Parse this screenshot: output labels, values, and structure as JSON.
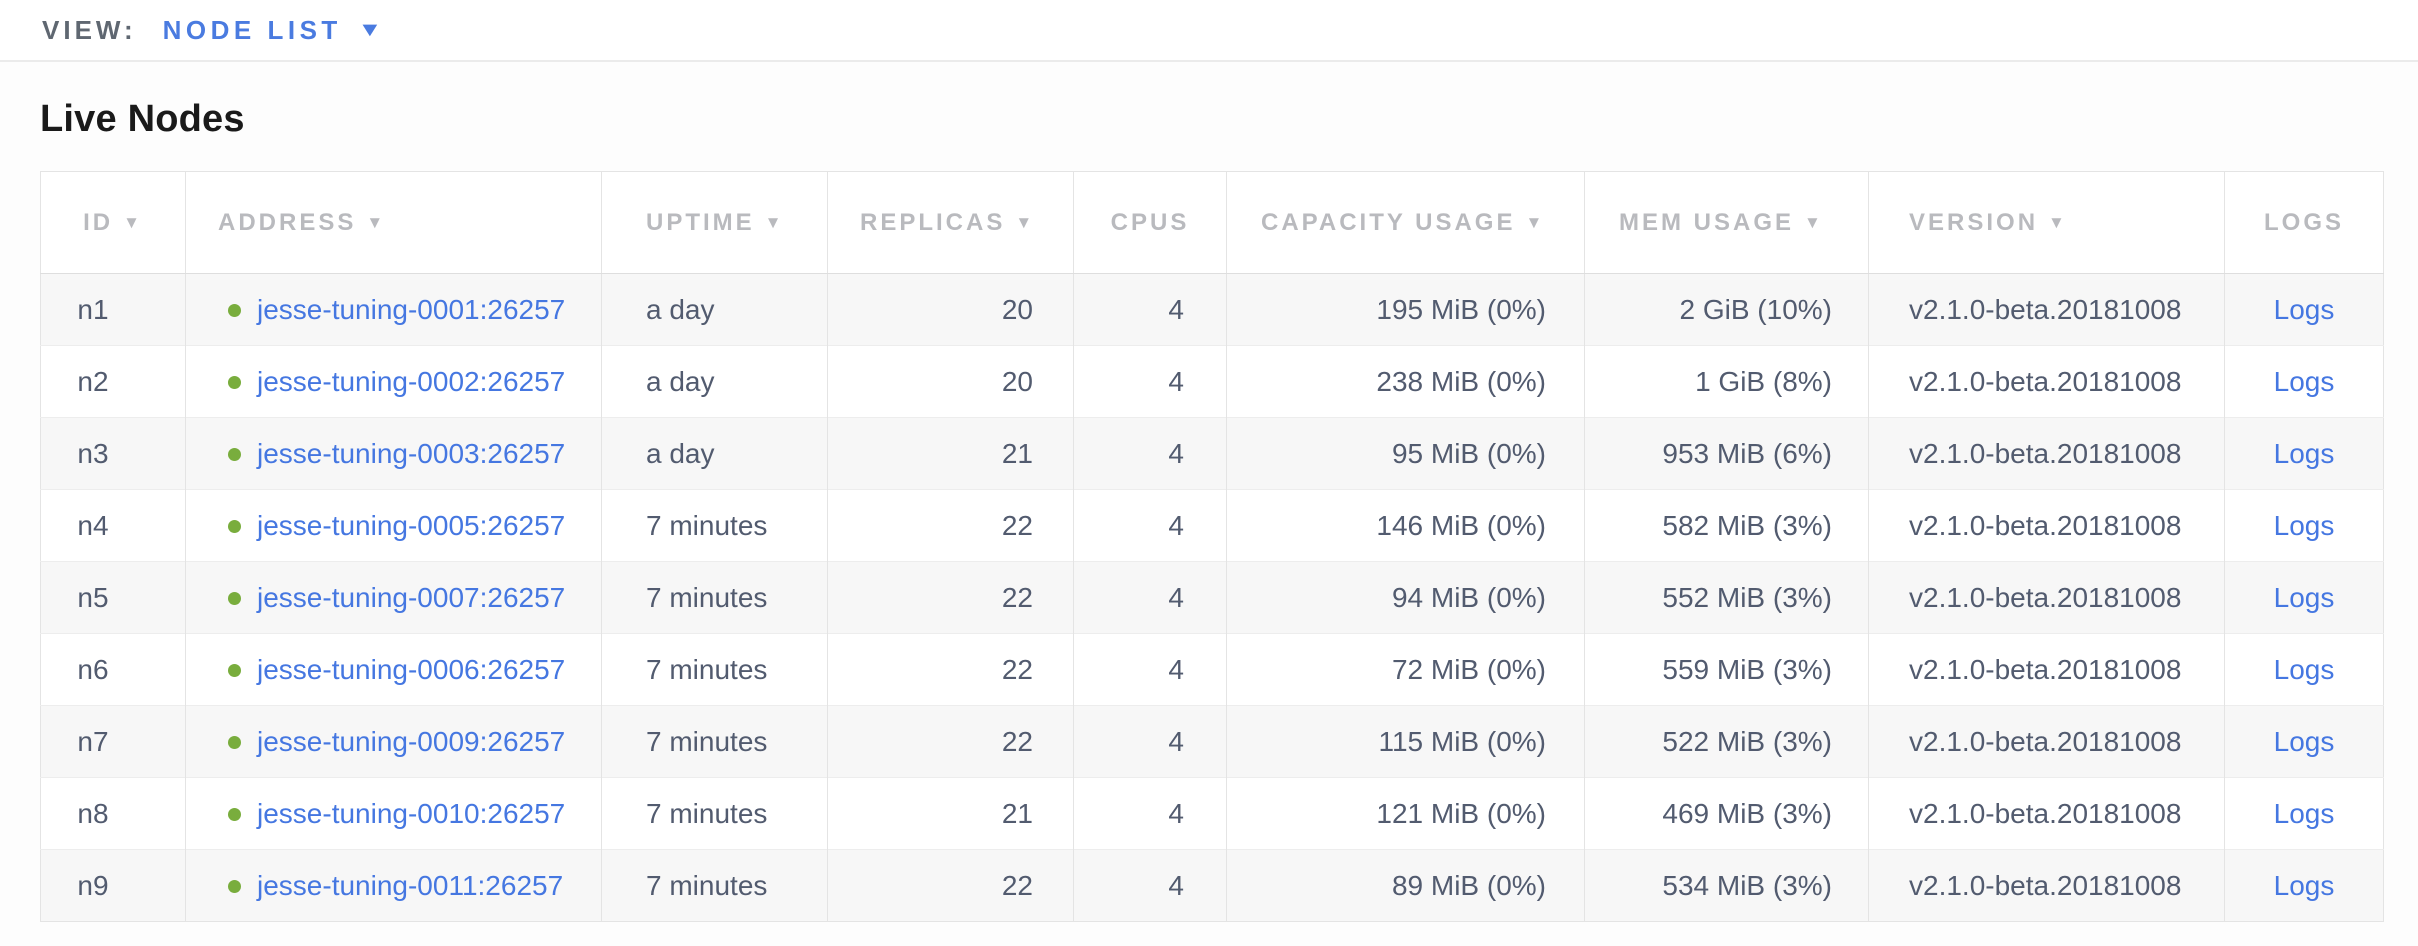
{
  "view_bar": {
    "label": "VIEW:",
    "selected_view": "NODE LIST"
  },
  "section": {
    "title": "Live Nodes"
  },
  "icons": {
    "sort_desc": "▼",
    "dropdown_caret": "▼",
    "status_dot": "live-green-dot"
  },
  "colors": {
    "accent_blue": "#4a7be0",
    "link_blue": "#4577e1",
    "live_green": "#79ad3d",
    "header_gray": "#b9babe",
    "cell_text": "#525b6f",
    "row_stripe": "#f7f7f7"
  },
  "table": {
    "columns": [
      {
        "key": "id",
        "label": "ID",
        "sortable": true
      },
      {
        "key": "address",
        "label": "ADDRESS",
        "sortable": true
      },
      {
        "key": "uptime",
        "label": "UPTIME",
        "sortable": true
      },
      {
        "key": "replicas",
        "label": "REPLICAS",
        "sortable": true
      },
      {
        "key": "cpus",
        "label": "CPUS",
        "sortable": false
      },
      {
        "key": "capacity",
        "label": "CAPACITY USAGE",
        "sortable": true
      },
      {
        "key": "mem",
        "label": "MEM USAGE",
        "sortable": true
      },
      {
        "key": "version",
        "label": "VERSION",
        "sortable": true
      },
      {
        "key": "logs",
        "label": "LOGS",
        "sortable": false
      }
    ],
    "rows": [
      {
        "id": "n1",
        "address": "jesse-tuning-0001:26257",
        "uptime": "a day",
        "replicas": "20",
        "cpus": "4",
        "capacity": "195 MiB (0%)",
        "mem": "2 GiB (10%)",
        "version": "v2.1.0-beta.20181008",
        "logs": "Logs"
      },
      {
        "id": "n2",
        "address": "jesse-tuning-0002:26257",
        "uptime": "a day",
        "replicas": "20",
        "cpus": "4",
        "capacity": "238 MiB (0%)",
        "mem": "1 GiB (8%)",
        "version": "v2.1.0-beta.20181008",
        "logs": "Logs"
      },
      {
        "id": "n3",
        "address": "jesse-tuning-0003:26257",
        "uptime": "a day",
        "replicas": "21",
        "cpus": "4",
        "capacity": "95 MiB (0%)",
        "mem": "953 MiB (6%)",
        "version": "v2.1.0-beta.20181008",
        "logs": "Logs"
      },
      {
        "id": "n4",
        "address": "jesse-tuning-0005:26257",
        "uptime": "7 minutes",
        "replicas": "22",
        "cpus": "4",
        "capacity": "146 MiB (0%)",
        "mem": "582 MiB (3%)",
        "version": "v2.1.0-beta.20181008",
        "logs": "Logs"
      },
      {
        "id": "n5",
        "address": "jesse-tuning-0007:26257",
        "uptime": "7 minutes",
        "replicas": "22",
        "cpus": "4",
        "capacity": "94 MiB (0%)",
        "mem": "552 MiB (3%)",
        "version": "v2.1.0-beta.20181008",
        "logs": "Logs"
      },
      {
        "id": "n6",
        "address": "jesse-tuning-0006:26257",
        "uptime": "7 minutes",
        "replicas": "22",
        "cpus": "4",
        "capacity": "72 MiB (0%)",
        "mem": "559 MiB (3%)",
        "version": "v2.1.0-beta.20181008",
        "logs": "Logs"
      },
      {
        "id": "n7",
        "address": "jesse-tuning-0009:26257",
        "uptime": "7 minutes",
        "replicas": "22",
        "cpus": "4",
        "capacity": "115 MiB (0%)",
        "mem": "522 MiB (3%)",
        "version": "v2.1.0-beta.20181008",
        "logs": "Logs"
      },
      {
        "id": "n8",
        "address": "jesse-tuning-0010:26257",
        "uptime": "7 minutes",
        "replicas": "21",
        "cpus": "4",
        "capacity": "121 MiB (0%)",
        "mem": "469 MiB (3%)",
        "version": "v2.1.0-beta.20181008",
        "logs": "Logs"
      },
      {
        "id": "n9",
        "address": "jesse-tuning-0011:26257",
        "uptime": "7 minutes",
        "replicas": "22",
        "cpus": "4",
        "capacity": "89 MiB (0%)",
        "mem": "534 MiB (3%)",
        "version": "v2.1.0-beta.20181008",
        "logs": "Logs"
      }
    ]
  }
}
